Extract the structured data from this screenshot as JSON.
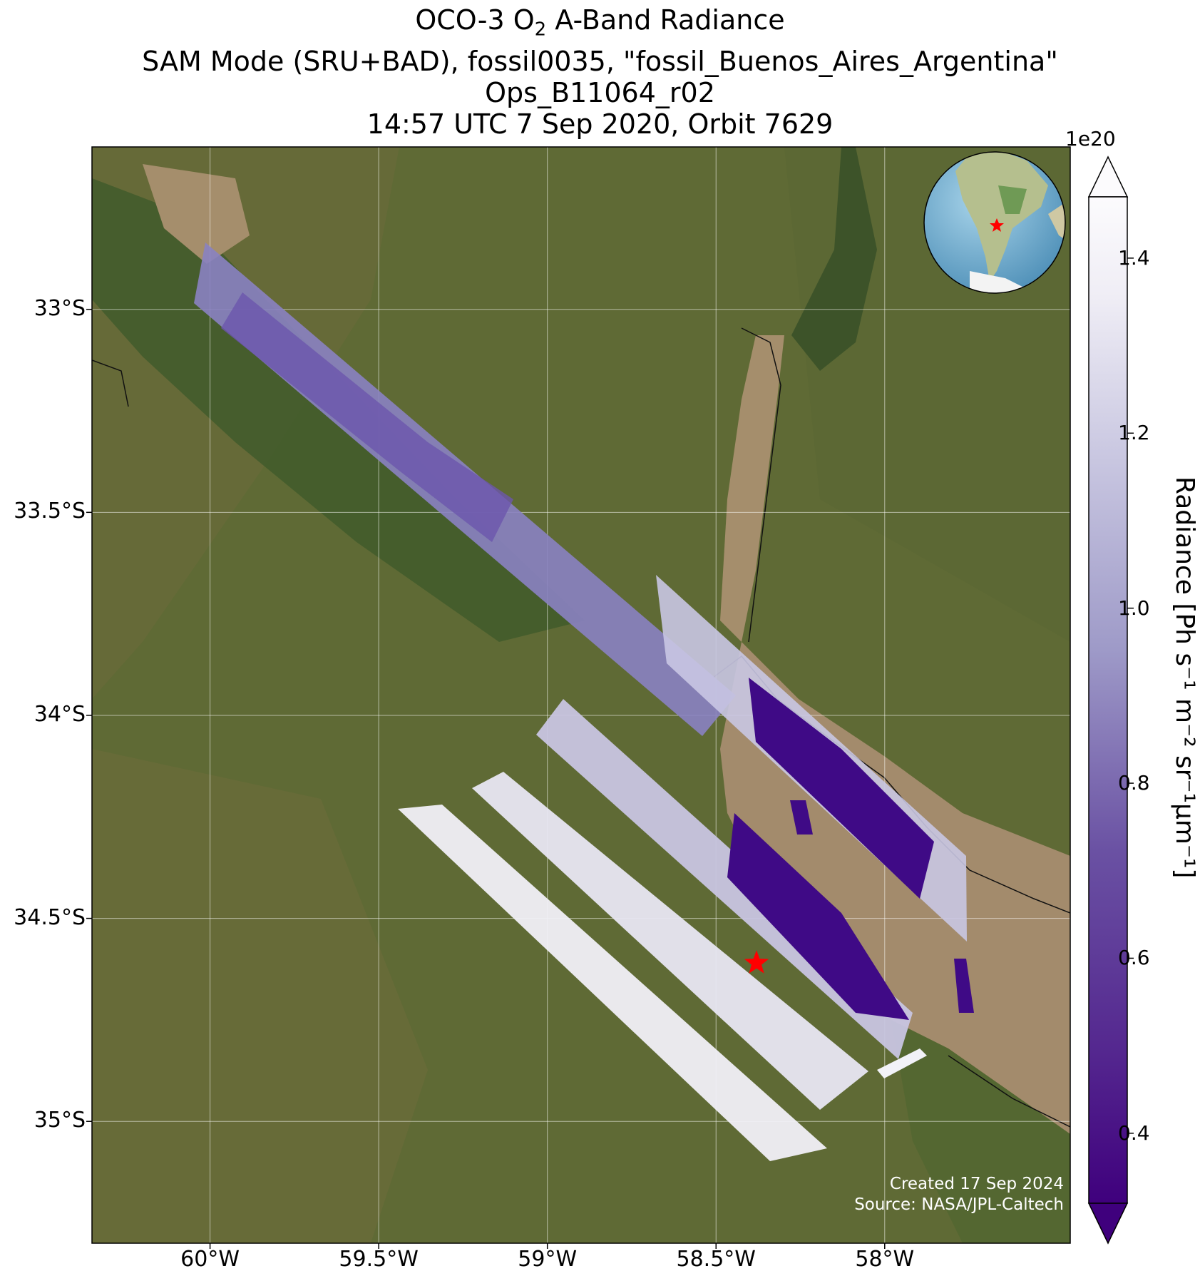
{
  "title": {
    "line1_pre": "OCO-3 O",
    "line1_sub": "2",
    "line1_post": " A-Band Radiance",
    "line2": "SAM Mode (SRU+BAD), fossil0035, \"fossil_Buenos_Aires_Argentina\"",
    "line3": "Ops_B11064_r02",
    "line4": "14:57 UTC 7 Sep 2020, Orbit 7629"
  },
  "map": {
    "lon_range": [
      -60.35,
      -57.45
    ],
    "lat_range": [
      -35.3,
      -32.6
    ],
    "lat_ticks": [
      "33°S",
      "33.5°S",
      "34°S",
      "34.5°S",
      "35°S"
    ],
    "lat_tick_values": [
      -33,
      -33.5,
      -34,
      -34.5,
      -35
    ],
    "lon_ticks": [
      "60°W",
      "59.5°W",
      "59°W",
      "58.5°W",
      "58°W"
    ],
    "lon_tick_values": [
      -60,
      -59.5,
      -59,
      -58.5,
      -58
    ],
    "target": {
      "name": "Buenos Aires",
      "lon": -58.38,
      "lat": -34.61,
      "color": "#ff0000"
    },
    "basemap": "satellite imagery",
    "inset": "globe showing South America with target star"
  },
  "colorbar": {
    "label": "Radiance [Ph s⁻¹ m⁻² sr⁻¹μm⁻¹]",
    "exponent": "1e20",
    "ticks": [
      "0.4",
      "0.6",
      "0.8",
      "1.0",
      "1.2",
      "1.4"
    ],
    "tick_values": [
      0.4,
      0.6,
      0.8,
      1.0,
      1.2,
      1.4
    ],
    "range": [
      0.32,
      1.47
    ],
    "colormap": "Purples_r",
    "extend": "both"
  },
  "credits": {
    "created": "Created 17 Sep 2024",
    "source": "Source: NASA/JPL-Caltech"
  }
}
